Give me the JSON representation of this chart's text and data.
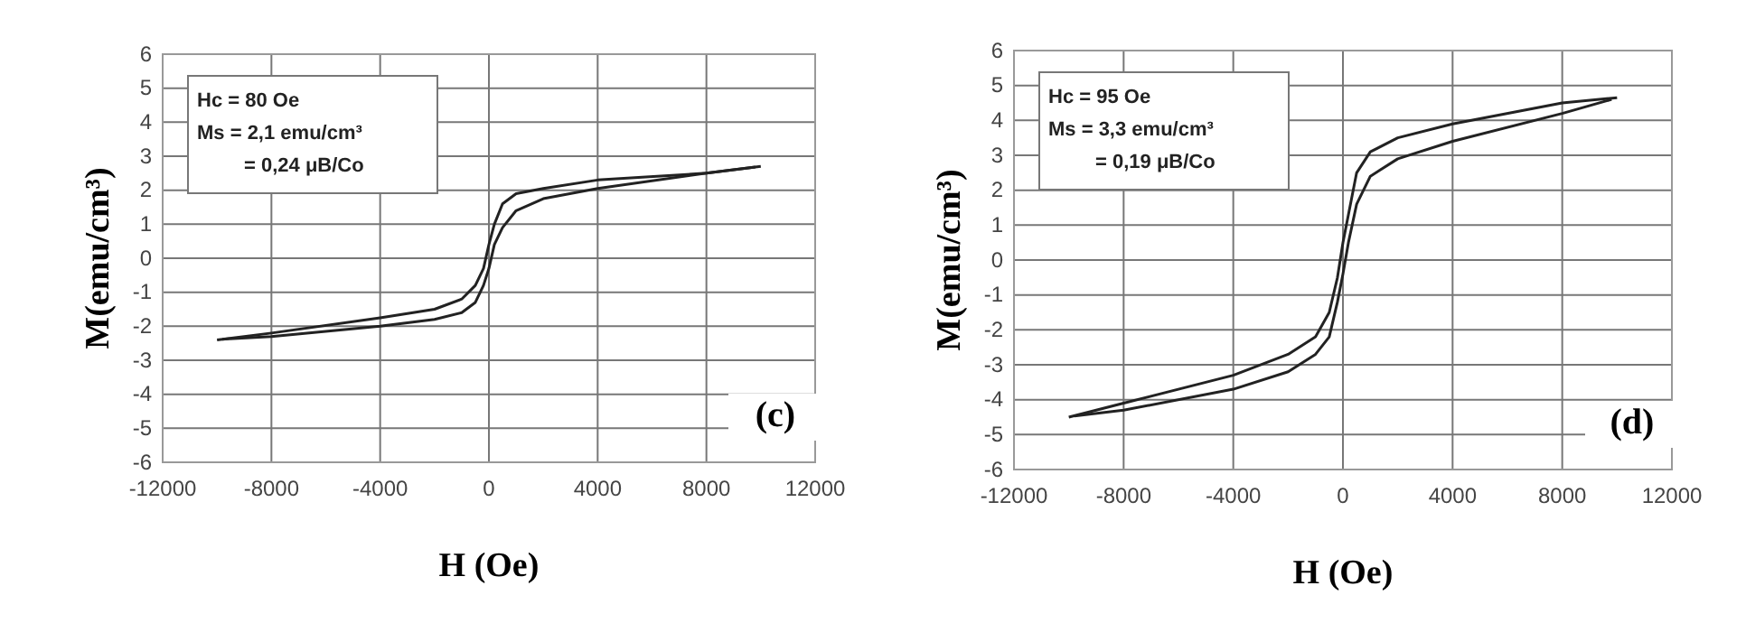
{
  "chart_data": [
    {
      "type": "line",
      "xlabel": "H (Oe)",
      "ylabel": "M(emu/cm³)",
      "xlim": [
        -12000,
        12000
      ],
      "ylim": [
        -6,
        6
      ],
      "xticks": [
        -12000,
        -8000,
        -4000,
        0,
        4000,
        8000,
        12000
      ],
      "yticks": [
        -6,
        -5,
        -4,
        -3,
        -2,
        -1,
        0,
        1,
        2,
        3,
        4,
        5,
        6
      ],
      "grid": true,
      "marker": "none",
      "line_style": "solid",
      "annotations": [
        "Hc = 80 Oe",
        "Ms = 2,1 emu/cm³",
        "= 0,24 μB/Co",
        "(c)"
      ],
      "series": [
        {
          "color": "#222222",
          "x": [
            10000,
            8000,
            4000,
            2000,
            1000,
            500,
            200,
            0,
            -200,
            -500,
            -1000,
            -2000,
            -4000,
            -8000,
            -10000
          ],
          "values": [
            2.7,
            2.5,
            2.3,
            2.05,
            1.9,
            1.6,
            1.0,
            0.4,
            -0.3,
            -0.8,
            -1.2,
            -1.5,
            -1.75,
            -2.2,
            -2.4
          ]
        },
        {
          "color": "#222222",
          "x": [
            -9800,
            -8000,
            -4000,
            -2000,
            -1000,
            -500,
            -200,
            0,
            200,
            500,
            1000,
            2000,
            4000,
            8000,
            9800
          ],
          "values": [
            -2.38,
            -2.3,
            -2.0,
            -1.8,
            -1.6,
            -1.3,
            -0.8,
            -0.3,
            0.4,
            0.9,
            1.4,
            1.75,
            2.05,
            2.5,
            2.68
          ]
        }
      ]
    },
    {
      "type": "line",
      "xlabel": "H (Oe)",
      "ylabel": "M(emu/cm³)",
      "xlim": [
        -12000,
        12000
      ],
      "ylim": [
        -6,
        6
      ],
      "xticks": [
        -12000,
        -8000,
        -4000,
        0,
        4000,
        8000,
        12000
      ],
      "yticks": [
        -6,
        -5,
        -4,
        -3,
        -2,
        -1,
        0,
        1,
        2,
        3,
        4,
        5,
        6
      ],
      "grid": true,
      "marker": "none",
      "line_style": "solid",
      "annotations": [
        "Hc = 95 Oe",
        "Ms = 3,3 emu/cm³",
        "= 0,19 μB/Co",
        "(d)"
      ],
      "series": [
        {
          "color": "#222222",
          "x": [
            10000,
            8000,
            4000,
            2000,
            1000,
            500,
            200,
            0,
            -200,
            -500,
            -1000,
            -2000,
            -4000,
            -8000,
            -10000
          ],
          "values": [
            4.65,
            4.5,
            3.9,
            3.5,
            3.1,
            2.5,
            1.3,
            0.5,
            -0.5,
            -1.5,
            -2.2,
            -2.7,
            -3.3,
            -4.1,
            -4.5
          ]
        },
        {
          "color": "#222222",
          "x": [
            -9800,
            -8000,
            -4000,
            -2000,
            -1000,
            -500,
            -200,
            0,
            200,
            500,
            1000,
            2000,
            4000,
            8000,
            9800
          ],
          "values": [
            -4.47,
            -4.3,
            -3.7,
            -3.2,
            -2.7,
            -2.2,
            -1.2,
            -0.4,
            0.5,
            1.6,
            2.4,
            2.9,
            3.4,
            4.2,
            4.6
          ]
        }
      ]
    }
  ]
}
